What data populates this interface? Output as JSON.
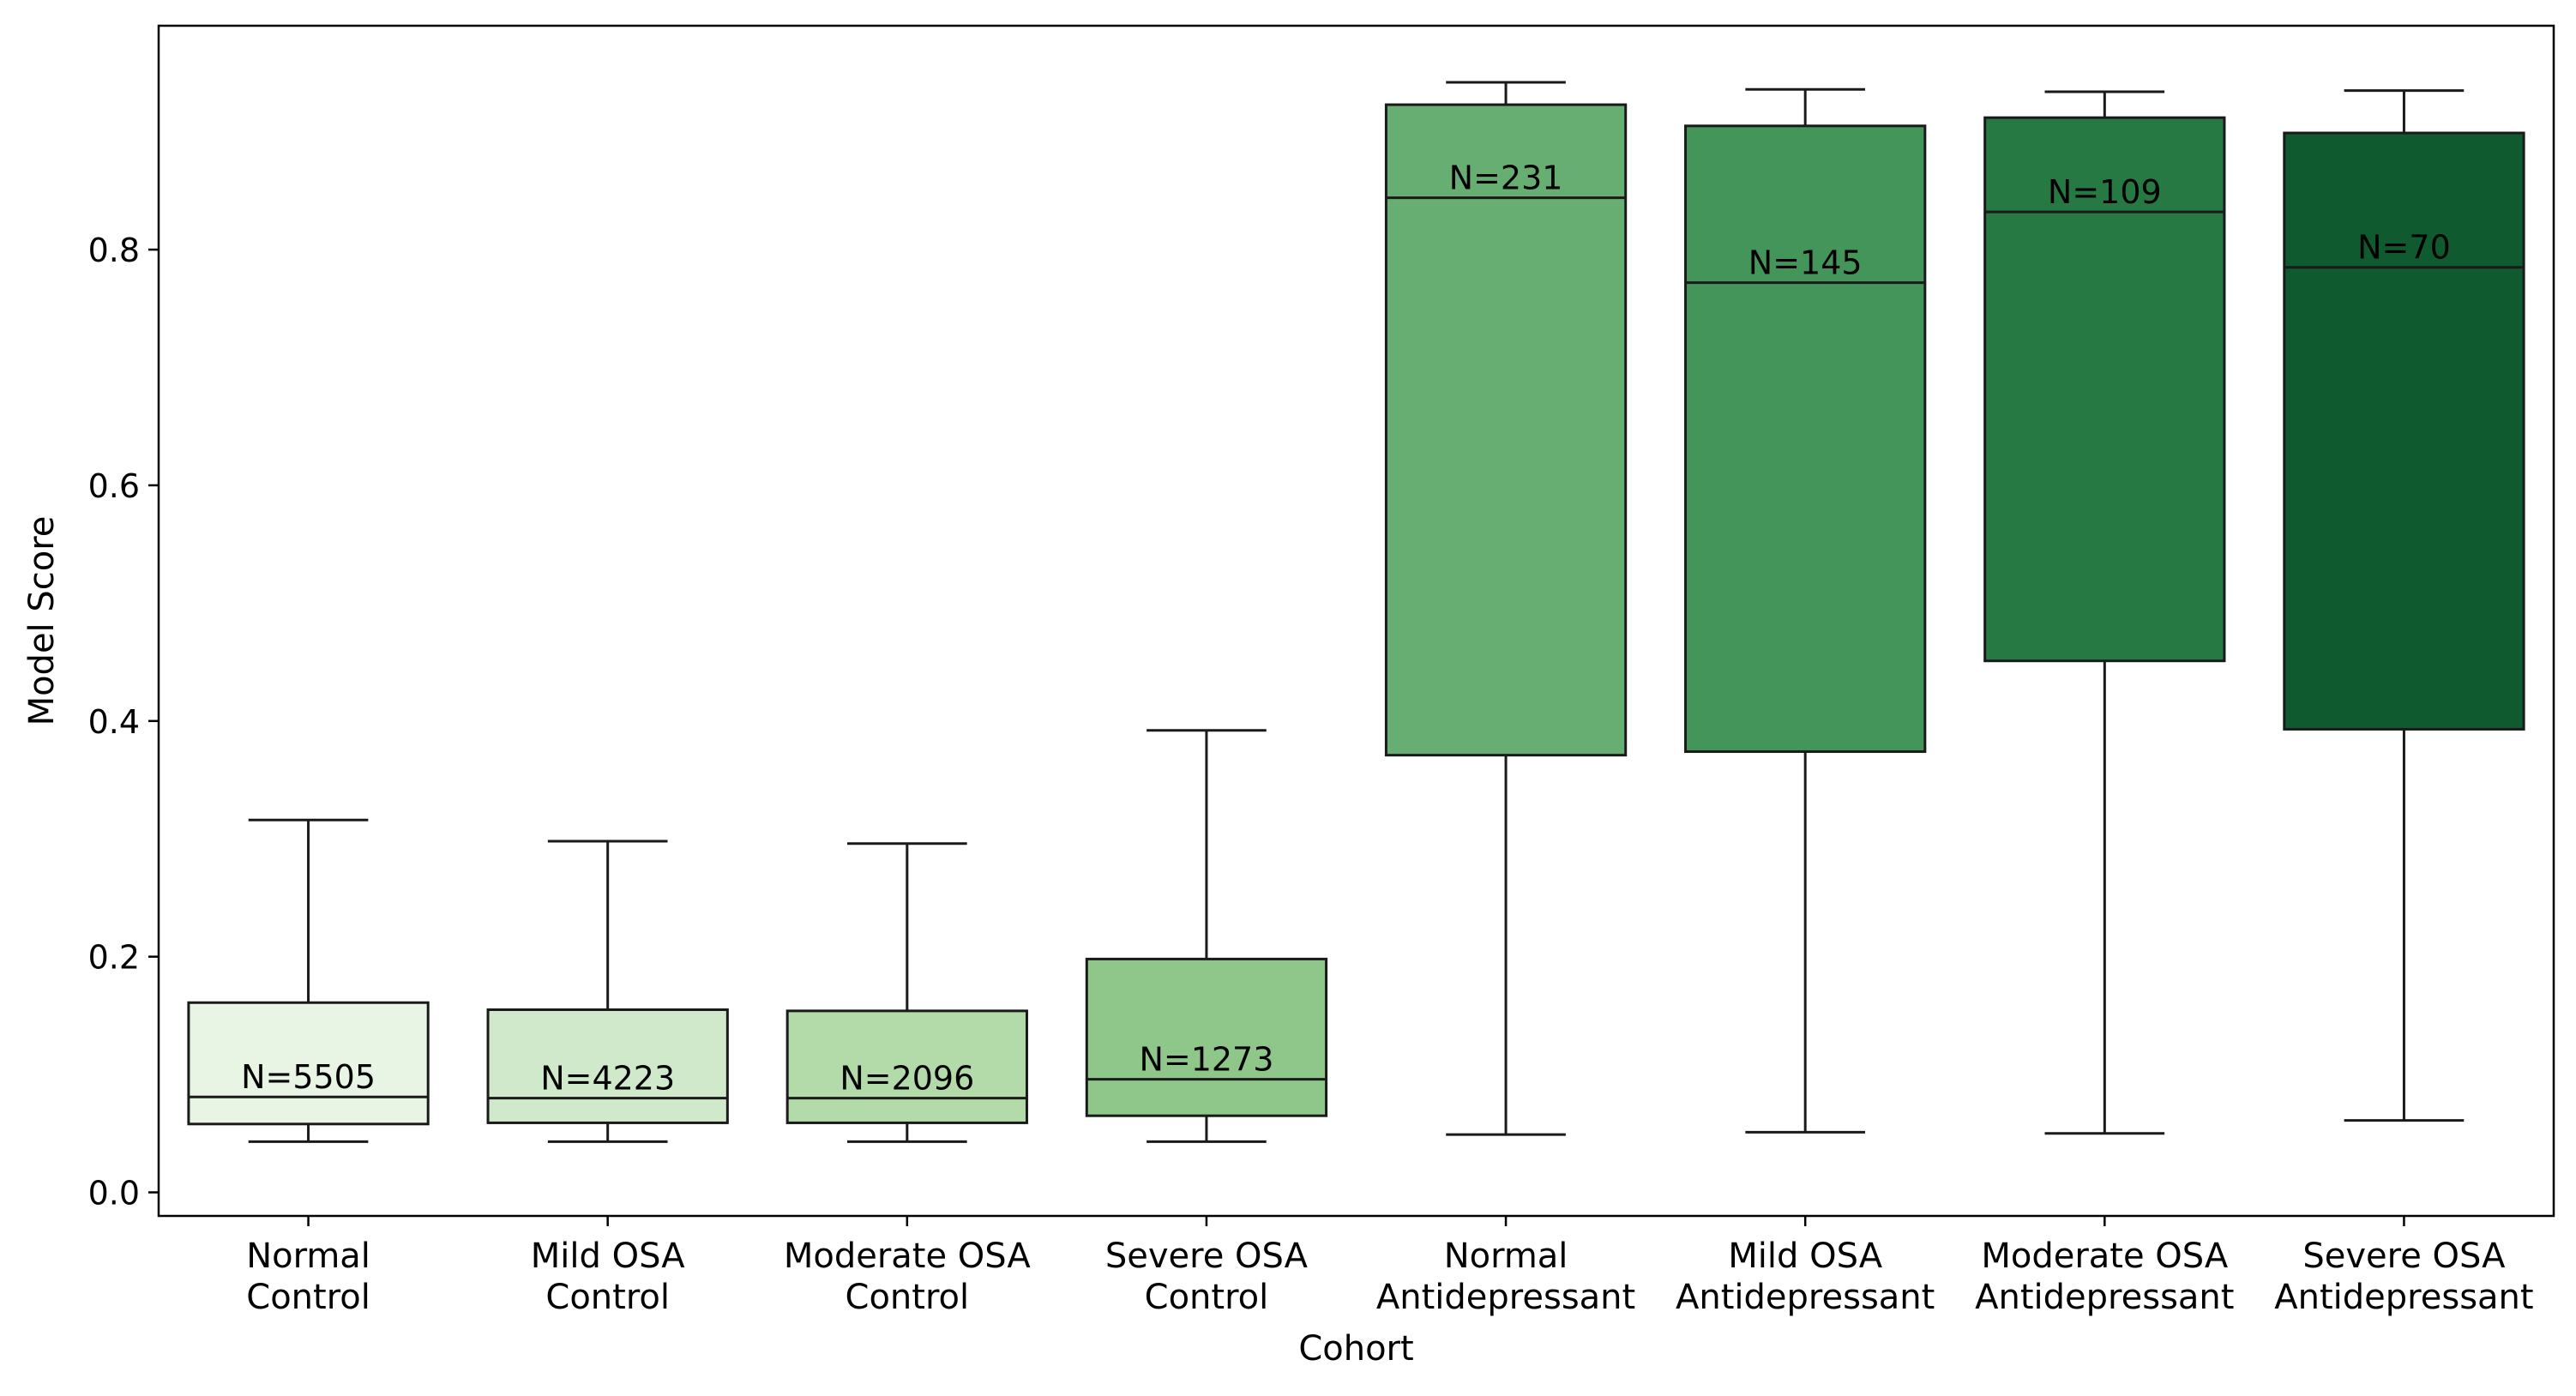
{
  "chart_data": {
    "type": "box",
    "xlabel": "Cohort",
    "ylabel": "Model Score",
    "ylim": [
      -0.02,
      0.99
    ],
    "yticks": [
      0.0,
      0.2,
      0.4,
      0.6,
      0.8
    ],
    "ytick_labels": [
      "0.0",
      "0.2",
      "0.4",
      "0.6",
      "0.8"
    ],
    "grid": false,
    "categories": [
      [
        "Normal",
        "Control"
      ],
      [
        "Mild OSA",
        "Control"
      ],
      [
        "Moderate OSA",
        "Control"
      ],
      [
        "Severe OSA",
        "Control"
      ],
      [
        "Normal",
        "Antidepressant"
      ],
      [
        "Mild OSA",
        "Antidepressant"
      ],
      [
        "Moderate OSA",
        "Antidepressant"
      ],
      [
        "Severe OSA",
        "Antidepressant"
      ]
    ],
    "boxes": [
      {
        "whisker_low": 0.043,
        "q1": 0.058,
        "median": 0.081,
        "q3": 0.161,
        "whisker_high": 0.316,
        "n_label": "N=5505",
        "color": "#e8f4e4"
      },
      {
        "whisker_low": 0.043,
        "q1": 0.059,
        "median": 0.08,
        "q3": 0.155,
        "whisker_high": 0.298,
        "n_label": "N=4223",
        "color": "#d1e9cb"
      },
      {
        "whisker_low": 0.043,
        "q1": 0.059,
        "median": 0.08,
        "q3": 0.154,
        "whisker_high": 0.296,
        "n_label": "N=2096",
        "color": "#b2dba9"
      },
      {
        "whisker_low": 0.043,
        "q1": 0.065,
        "median": 0.096,
        "q3": 0.198,
        "whisker_high": 0.392,
        "n_label": "N=1273",
        "color": "#8fc78a"
      },
      {
        "whisker_low": 0.049,
        "q1": 0.371,
        "median": 0.844,
        "q3": 0.923,
        "whisker_high": 0.942,
        "n_label": "N=231",
        "color": "#67ae72"
      },
      {
        "whisker_low": 0.051,
        "q1": 0.374,
        "median": 0.772,
        "q3": 0.905,
        "whisker_high": 0.936,
        "n_label": "N=145",
        "color": "#43955a"
      },
      {
        "whisker_low": 0.05,
        "q1": 0.451,
        "median": 0.832,
        "q3": 0.912,
        "whisker_high": 0.934,
        "n_label": "N=109",
        "color": "#277943"
      },
      {
        "whisker_low": 0.061,
        "q1": 0.393,
        "median": 0.785,
        "q3": 0.899,
        "whisker_high": 0.935,
        "n_label": "N=70",
        "color": "#0f5a2e"
      }
    ]
  }
}
